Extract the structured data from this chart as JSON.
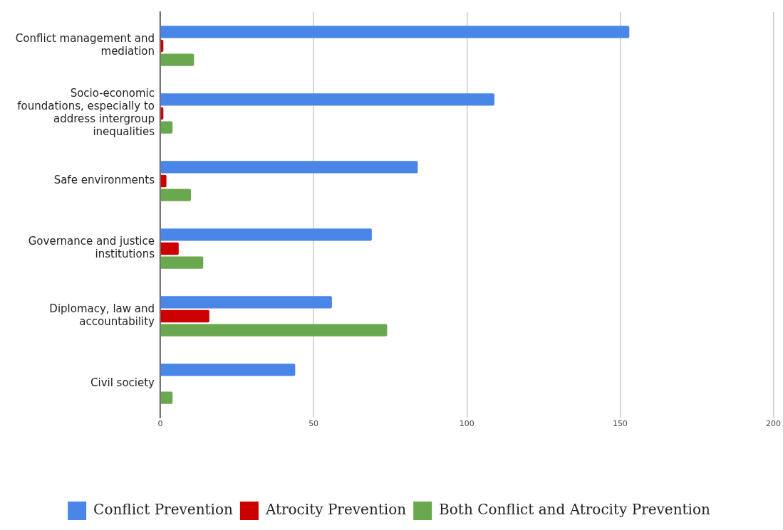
{
  "chart_data": {
    "type": "bar",
    "orientation": "horizontal",
    "categories": [
      "Conflict management and mediation",
      "Socio-economic foundations, especially to address intergroup inequalities",
      "Safe environments",
      "Governance and justice institutions",
      "Diplomacy, law and accountability",
      "Civil society"
    ],
    "series": [
      {
        "name": "Conflict Prevention",
        "color": "#4a86e8",
        "values": [
          153,
          109,
          84,
          69,
          56,
          44
        ]
      },
      {
        "name": "Atrocity Prevention",
        "color": "#cc0000",
        "values": [
          1,
          1,
          2,
          6,
          16,
          0
        ]
      },
      {
        "name": "Both Conflict and Atrocity Prevention",
        "color": "#6aa84f",
        "values": [
          11,
          4,
          10,
          14,
          74,
          4
        ]
      }
    ],
    "xlim": [
      0,
      200
    ],
    "xticks": [
      0,
      50,
      100,
      150,
      200
    ],
    "grid": "x",
    "legend": "bottom"
  }
}
